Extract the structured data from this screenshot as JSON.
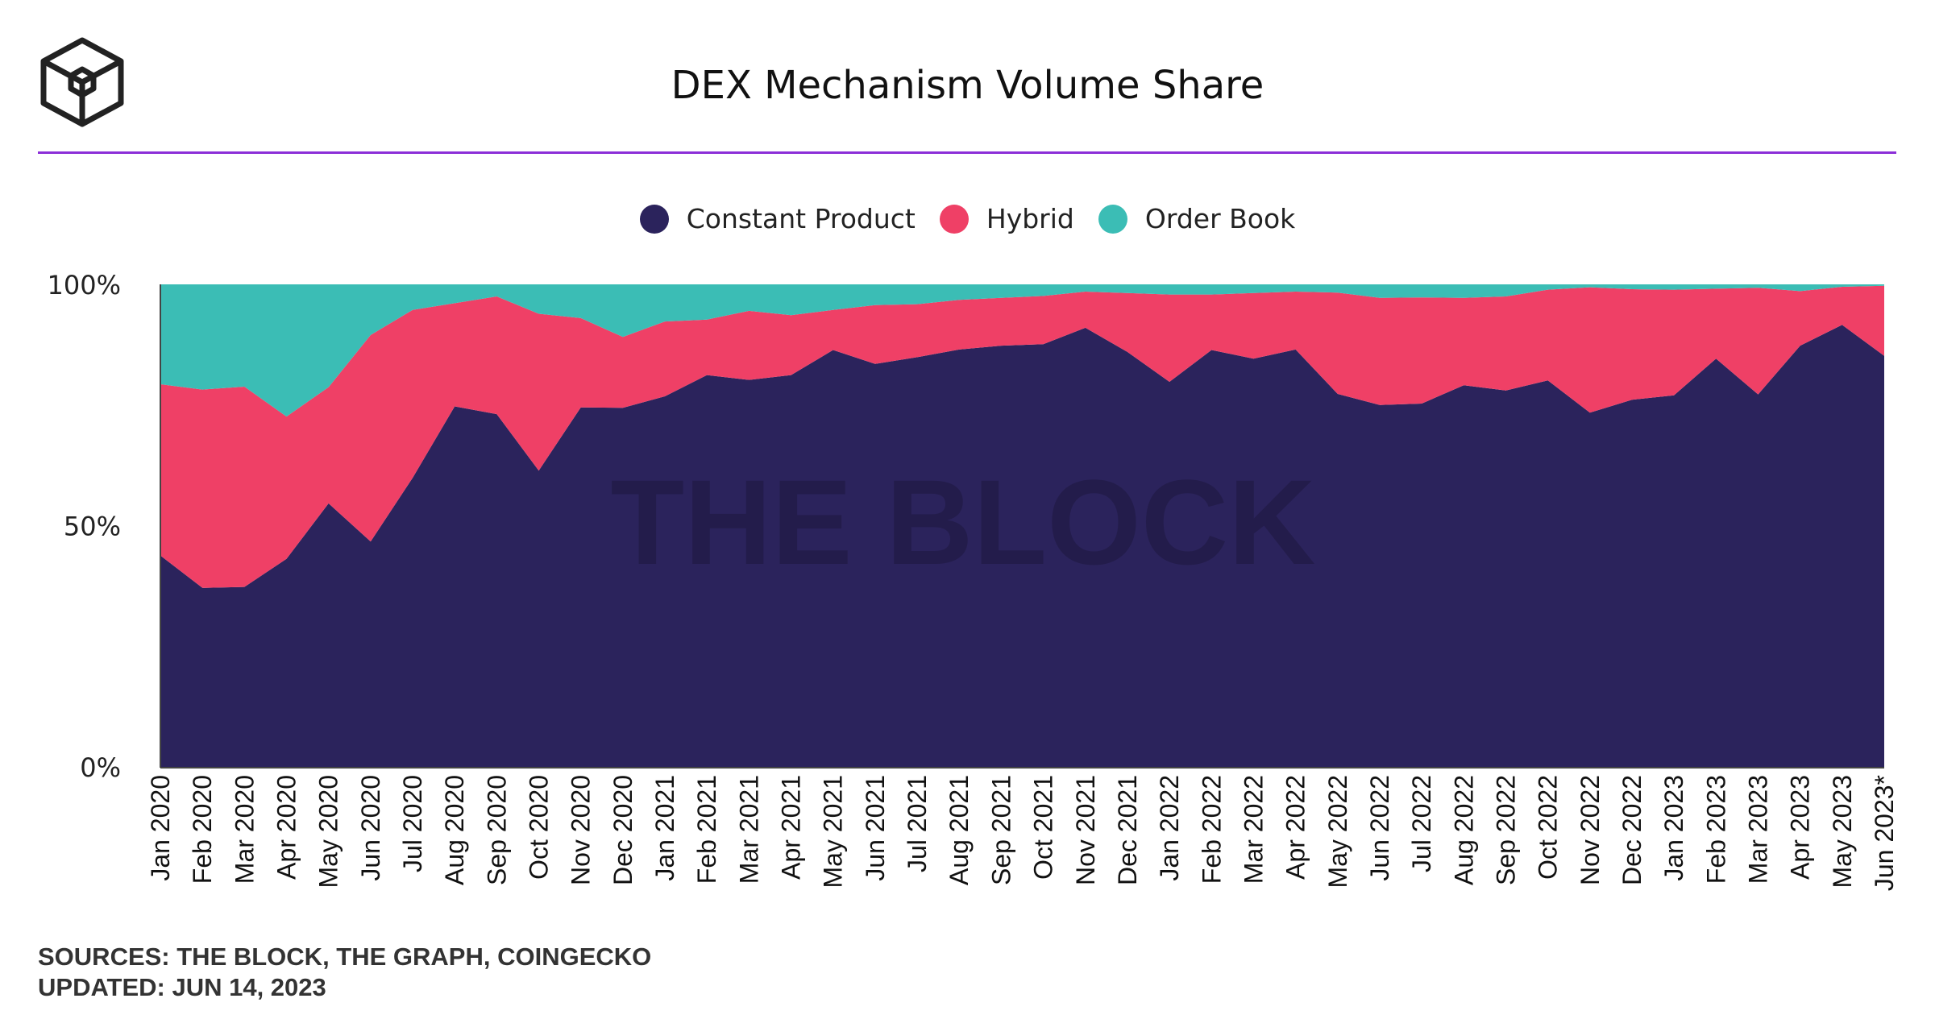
{
  "title": "DEX Mechanism Volume Share",
  "logo_icon": "the-block-cube-logo",
  "watermark": "THE BLOCK",
  "sources": "SOURCES: THE BLOCK, THE GRAPH, COINGECKO",
  "updated": "UPDATED: JUN 14, 2023",
  "colors": {
    "constant_product": "#2b235c",
    "hybrid": "#ef4066",
    "order_book": "#3bbdb5",
    "accent_rule": "#8c2fd8"
  },
  "legend": [
    {
      "label": "Constant Product",
      "color": "#2b235c"
    },
    {
      "label": "Hybrid",
      "color": "#ef4066"
    },
    {
      "label": "Order Book",
      "color": "#3bbdb5"
    }
  ],
  "chart_data": {
    "type": "area",
    "stacked": true,
    "title": "DEX Mechanism Volume Share",
    "xlabel": "",
    "ylabel": "",
    "ylim": [
      0,
      100
    ],
    "yticks": [
      "0%",
      "50%",
      "100%"
    ],
    "grid": false,
    "legend_position": "top-center",
    "categories": [
      "Jan 2020",
      "Feb 2020",
      "Mar 2020",
      "Apr 2020",
      "May 2020",
      "Jun 2020",
      "Jul 2020",
      "Aug 2020",
      "Sep 2020",
      "Oct 2020",
      "Nov 2020",
      "Dec 2020",
      "Jan 2021",
      "Feb 2021",
      "Mar 2021",
      "Apr 2021",
      "May 2021",
      "Jun 2021",
      "Jul 2021",
      "Aug 2021",
      "Sep 2021",
      "Oct 2021",
      "Nov 2021",
      "Dec 2021",
      "Jan 2022",
      "Feb 2022",
      "Mar 2022",
      "Apr 2022",
      "May 2022",
      "Jun 2022",
      "Jul 2022",
      "Aug 2022",
      "Sep 2022",
      "Oct 2022",
      "Nov 2022",
      "Dec 2022",
      "Jan 2023",
      "Feb 2023",
      "Mar 2023",
      "Apr 2023",
      "May 2023",
      "Jun 2023*"
    ],
    "series": [
      {
        "name": "Constant Product",
        "values": [
          43.8,
          37.1,
          37.3,
          43.1,
          54.6,
          46.7,
          59.9,
          74.7,
          73.1,
          61.4,
          74.5,
          74.4,
          76.8,
          81.2,
          80.2,
          81.2,
          86.4,
          83.5,
          84.9,
          86.5,
          87.3,
          87.6,
          91.0,
          86.0,
          79.8,
          86.4,
          84.6,
          86.5,
          77.3,
          75.0,
          75.3,
          79.1,
          78.0,
          80.1,
          73.4,
          76.1,
          77.0,
          84.6,
          77.2,
          87.3,
          91.6,
          85.2
        ]
      },
      {
        "name": "Hybrid",
        "values": [
          35.5,
          41.1,
          41.5,
          29.5,
          24.1,
          42.8,
          34.8,
          21.4,
          24.4,
          32.5,
          18.5,
          14.7,
          15.5,
          11.5,
          14.3,
          12.4,
          8.3,
          12.2,
          11.0,
          10.3,
          9.9,
          10.0,
          7.5,
          12.2,
          18.1,
          11.5,
          13.6,
          12.0,
          21.0,
          22.2,
          22.0,
          18.1,
          19.5,
          18.8,
          26.0,
          22.9,
          21.9,
          14.5,
          22.1,
          11.3,
          7.9,
          14.5
        ]
      },
      {
        "name": "Order Book",
        "values": [
          20.7,
          21.8,
          21.2,
          27.4,
          21.3,
          10.5,
          5.3,
          3.9,
          2.5,
          6.1,
          7.0,
          10.9,
          7.7,
          7.3,
          5.5,
          6.4,
          5.3,
          4.3,
          4.1,
          3.2,
          2.8,
          2.4,
          1.5,
          1.8,
          2.1,
          2.1,
          1.8,
          1.5,
          1.7,
          2.8,
          2.7,
          2.8,
          2.5,
          1.1,
          0.6,
          1.0,
          1.1,
          0.9,
          0.7,
          1.4,
          0.5,
          0.3
        ]
      }
    ]
  }
}
